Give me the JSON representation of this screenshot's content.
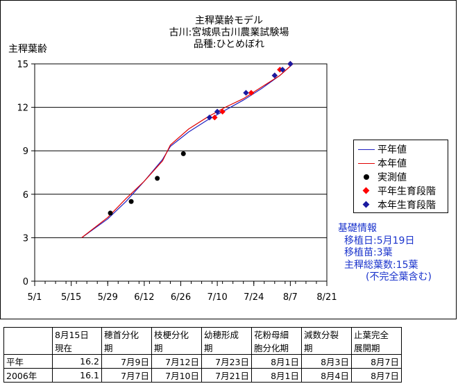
{
  "title_lines": [
    "主稈葉齢モデル",
    "古川:宮城県古川農業試験場",
    "品種:ひとめぼれ"
  ],
  "ylabel": "主稈葉齢",
  "colors": {
    "heinen": "#2020c0",
    "honnen": "#e00000",
    "measured": "#000000",
    "heinen_stage": "#ff0000",
    "honnen_stage": "#1a1aa0",
    "info_text": "#1a33cc"
  },
  "chart_data": {
    "type": "line",
    "title": "主稈葉齢モデル 古川:宮城県古川農業試験場 品種:ひとめぼれ",
    "ylabel": "主稈葉齢",
    "xlabel": "",
    "x_range": [
      "5/1",
      "8/21"
    ],
    "x_ticks": [
      "5/1",
      "5/15",
      "5/29",
      "6/12",
      "6/26",
      "7/10",
      "7/24",
      "8/7",
      "8/21"
    ],
    "ylim": [
      0,
      15
    ],
    "y_ticks": [
      0,
      3,
      6,
      9,
      12,
      15
    ],
    "grid": "horizontal",
    "legend_position": "right",
    "series": [
      {
        "name": "平年値",
        "kind": "line",
        "color": "#2020c0",
        "points": [
          [
            "5/19",
            3.0
          ],
          [
            "5/29",
            4.3
          ],
          [
            "6/5",
            5.5
          ],
          [
            "6/12",
            6.9
          ],
          [
            "6/19",
            8.4
          ],
          [
            "6/22",
            9.3
          ],
          [
            "6/29",
            10.3
          ],
          [
            "7/6",
            11.1
          ],
          [
            "7/13",
            11.8
          ],
          [
            "7/20",
            12.5
          ],
          [
            "7/27",
            13.3
          ],
          [
            "8/3",
            14.2
          ],
          [
            "8/8",
            15.0
          ]
        ]
      },
      {
        "name": "本年値",
        "kind": "line",
        "color": "#e00000",
        "points": [
          [
            "5/19",
            3.0
          ],
          [
            "5/29",
            4.4
          ],
          [
            "6/5",
            5.7
          ],
          [
            "6/12",
            6.9
          ],
          [
            "6/19",
            8.3
          ],
          [
            "6/22",
            9.4
          ],
          [
            "6/29",
            10.5
          ],
          [
            "7/6",
            11.3
          ],
          [
            "7/13",
            12.0
          ],
          [
            "7/20",
            12.6
          ],
          [
            "7/27",
            13.4
          ],
          [
            "8/3",
            14.2
          ],
          [
            "8/8",
            15.0
          ]
        ]
      },
      {
        "name": "実測値",
        "kind": "dot",
        "color": "#000000",
        "points": [
          [
            "5/30",
            4.7
          ],
          [
            "6/7",
            5.5
          ],
          [
            "6/17",
            7.1
          ],
          [
            "6/27",
            8.8
          ]
        ]
      },
      {
        "name": "平年生育段階",
        "kind": "diamond",
        "color": "#ff0000",
        "points": [
          [
            "7/9",
            11.3
          ],
          [
            "7/12",
            11.7
          ],
          [
            "7/23",
            13.0
          ],
          [
            "8/1",
            14.2
          ],
          [
            "8/3",
            14.6
          ],
          [
            "8/7",
            15.0
          ]
        ]
      },
      {
        "name": "本年生育段階",
        "kind": "diamond",
        "color": "#1a1aa0",
        "points": [
          [
            "7/7",
            11.3
          ],
          [
            "7/10",
            11.7
          ],
          [
            "7/21",
            13.0
          ],
          [
            "8/1",
            14.2
          ],
          [
            "8/4",
            14.6
          ],
          [
            "8/7",
            15.0
          ]
        ]
      }
    ]
  },
  "legend_items": [
    {
      "label": "平年値",
      "kind": "line",
      "color": "#2020c0"
    },
    {
      "label": "本年値",
      "kind": "line",
      "color": "#e00000"
    },
    {
      "label": "実測値",
      "kind": "dot",
      "color": "#000000"
    },
    {
      "label": "平年生育段階",
      "kind": "diamond",
      "color": "#ff0000"
    },
    {
      "label": "本年生育段階",
      "kind": "diamond",
      "color": "#1a1aa0"
    }
  ],
  "info": {
    "heading": "基礎情報",
    "lines": [
      "移植日:5月19日",
      "移植苗:3葉",
      "主稈総葉数:15葉",
      "(不完全葉含む)"
    ]
  },
  "table": {
    "headers": [
      [
        "",
        ""
      ],
      [
        "8月15日",
        "現在"
      ],
      [
        "穂首分化",
        "期"
      ],
      [
        "枝梗分化",
        "期"
      ],
      [
        "幼穂形成",
        "期"
      ],
      [
        "花粉母細",
        "胞分化期"
      ],
      [
        "減数分裂",
        "期"
      ],
      [
        "止葉完全",
        "展開期"
      ]
    ],
    "rows": [
      [
        "平年",
        "16.2",
        "7月9日",
        "7月12日",
        "7月23日",
        "8月1日",
        "8月3日",
        "8月7日"
      ],
      [
        "2006年",
        "16.1",
        "7月7日",
        "7月10日",
        "7月21日",
        "8月1日",
        "8月4日",
        "8月7日"
      ]
    ]
  }
}
